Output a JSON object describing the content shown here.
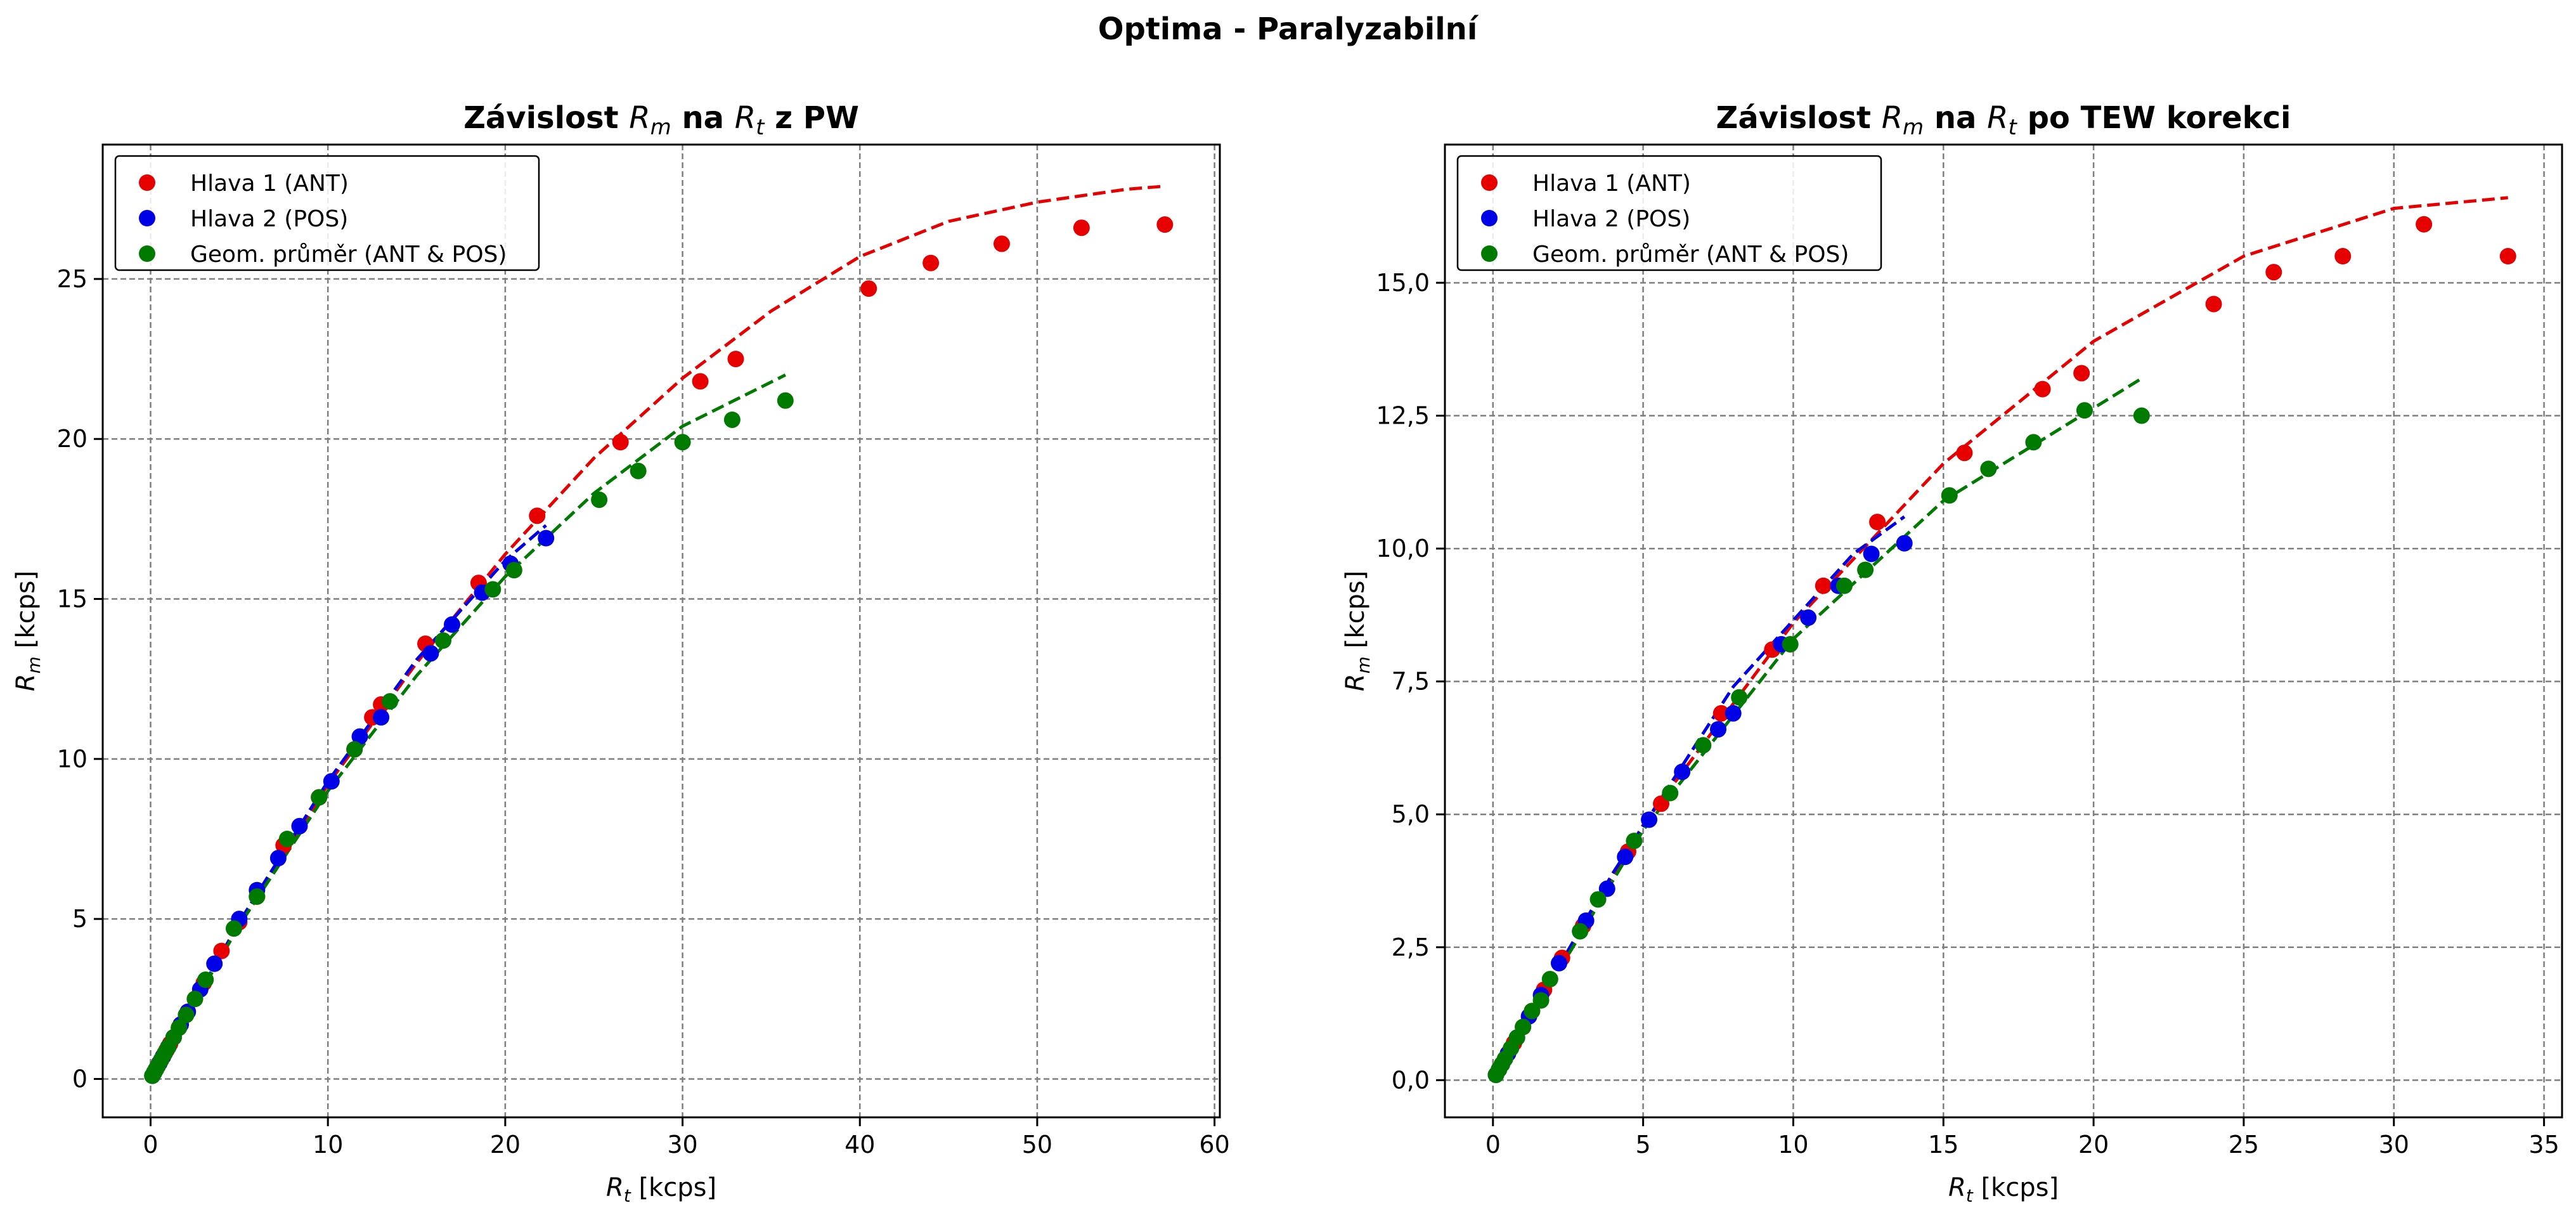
{
  "figure": {
    "suptitle": "Optima - Paralyzabilní"
  },
  "colors": {
    "head1": "#e60000",
    "head2": "#0000e6",
    "geom": "#007a00",
    "grid": "#7f7f7f"
  },
  "chart_data": [
    {
      "type": "scatter",
      "title": "Závislost R_m na R_t z PW",
      "title_parts": [
        "Závislost ",
        "R",
        "m",
        " na ",
        "R",
        "t",
        " z PW"
      ],
      "xlabel_parts": [
        "R",
        "t",
        " [kcps]"
      ],
      "ylabel_parts": [
        "R",
        "m",
        " [kcps]"
      ],
      "xlim": [
        -2.7,
        60.3
      ],
      "ylim": [
        -1.2,
        29.2
      ],
      "xticks": [
        0,
        10,
        20,
        30,
        40,
        50,
        60
      ],
      "yticks": [
        0,
        5,
        10,
        15,
        20,
        25
      ],
      "xtick_labels": [
        "0",
        "10",
        "20",
        "30",
        "40",
        "50",
        "60"
      ],
      "ytick_labels": [
        "0",
        "5",
        "10",
        "15",
        "20",
        "25"
      ],
      "grid": true,
      "legend_position": "top-left",
      "series": [
        {
          "name": "Hlava 1 (ANT)",
          "color_key": "head1",
          "points": [
            [
              0.1,
              0.1
            ],
            [
              0.2,
              0.2
            ],
            [
              0.3,
              0.3
            ],
            [
              0.4,
              0.4
            ],
            [
              0.5,
              0.5
            ],
            [
              0.7,
              0.7
            ],
            [
              0.9,
              0.9
            ],
            [
              1.1,
              1.1
            ],
            [
              1.3,
              1.3
            ],
            [
              1.6,
              1.6
            ],
            [
              2.0,
              2.0
            ],
            [
              2.5,
              2.5
            ],
            [
              3.0,
              3.0
            ],
            [
              4.0,
              4.0
            ],
            [
              5.0,
              4.9
            ],
            [
              6.0,
              5.7
            ],
            [
              7.5,
              7.3
            ],
            [
              9.5,
              8.8
            ],
            [
              11.5,
              10.3
            ],
            [
              12.5,
              11.3
            ],
            [
              13.0,
              11.7
            ],
            [
              15.5,
              13.6
            ],
            [
              18.5,
              15.5
            ],
            [
              21.8,
              17.6
            ],
            [
              26.5,
              19.9
            ],
            [
              31.0,
              21.8
            ],
            [
              33.0,
              22.5
            ],
            [
              40.5,
              24.7
            ],
            [
              44.0,
              25.5
            ],
            [
              48.0,
              26.1
            ],
            [
              52.5,
              26.6
            ],
            [
              57.2,
              26.7
            ]
          ]
        },
        {
          "name": "Hlava 2 (POS)",
          "color_key": "head2",
          "points": [
            [
              0.1,
              0.1
            ],
            [
              0.2,
              0.2
            ],
            [
              0.3,
              0.3
            ],
            [
              0.5,
              0.5
            ],
            [
              0.7,
              0.7
            ],
            [
              1.0,
              1.0
            ],
            [
              1.3,
              1.3
            ],
            [
              1.7,
              1.7
            ],
            [
              2.1,
              2.1
            ],
            [
              2.8,
              2.8
            ],
            [
              3.6,
              3.6
            ],
            [
              5.0,
              5.0
            ],
            [
              6.0,
              5.9
            ],
            [
              7.2,
              6.9
            ],
            [
              8.4,
              7.9
            ],
            [
              10.2,
              9.3
            ],
            [
              11.8,
              10.7
            ],
            [
              13.0,
              11.3
            ],
            [
              15.8,
              13.3
            ],
            [
              17.0,
              14.2
            ],
            [
              18.7,
              15.2
            ],
            [
              20.3,
              16.1
            ],
            [
              22.3,
              16.9
            ]
          ]
        },
        {
          "name": "Geom. průměr (ANT & POS)",
          "color_key": "geom",
          "points": [
            [
              0.1,
              0.1
            ],
            [
              0.2,
              0.2
            ],
            [
              0.3,
              0.3
            ],
            [
              0.4,
              0.4
            ],
            [
              0.6,
              0.6
            ],
            [
              0.8,
              0.8
            ],
            [
              1.0,
              1.0
            ],
            [
              1.3,
              1.3
            ],
            [
              1.6,
              1.6
            ],
            [
              2.0,
              2.0
            ],
            [
              2.5,
              2.5
            ],
            [
              3.1,
              3.1
            ],
            [
              4.7,
              4.7
            ],
            [
              6.0,
              5.7
            ],
            [
              7.7,
              7.5
            ],
            [
              9.5,
              8.8
            ],
            [
              11.5,
              10.3
            ],
            [
              13.5,
              11.8
            ],
            [
              16.5,
              13.7
            ],
            [
              19.3,
              15.3
            ],
            [
              20.5,
              15.9
            ],
            [
              25.3,
              18.1
            ],
            [
              27.5,
              19.0
            ],
            [
              30.0,
              19.9
            ],
            [
              32.8,
              20.6
            ],
            [
              35.8,
              21.2
            ]
          ]
        }
      ],
      "fits": [
        {
          "color_key": "head1",
          "x": [
            0,
            5,
            10,
            15,
            20,
            25,
            30,
            35,
            40,
            45,
            50,
            55,
            57.2
          ],
          "y": [
            0,
            4.8,
            9.2,
            13.0,
            16.4,
            19.4,
            21.9,
            24.0,
            25.7,
            26.8,
            27.4,
            27.8,
            27.9
          ]
        },
        {
          "color_key": "head2",
          "x": [
            0,
            5,
            10,
            15,
            20,
            22.3
          ],
          "y": [
            0,
            4.9,
            9.3,
            13.1,
            16.2,
            17.3
          ]
        },
        {
          "color_key": "geom",
          "x": [
            0,
            5,
            10,
            15,
            20,
            25,
            30,
            35.8
          ],
          "y": [
            0,
            4.8,
            9.0,
            12.6,
            15.7,
            18.3,
            20.4,
            22.0
          ]
        }
      ]
    },
    {
      "type": "scatter",
      "title": "Závislost R_m na R_t po TEW korekci",
      "title_parts": [
        "Závislost ",
        "R",
        "m",
        " na ",
        "R",
        "t",
        " po TEW korekci"
      ],
      "xlabel_parts": [
        "R",
        "t",
        " [kcps]"
      ],
      "ylabel_parts": [
        "R",
        "m",
        " [kcps]"
      ],
      "xlim": [
        -1.6,
        35.6
      ],
      "ylim": [
        -0.7,
        17.6
      ],
      "xticks": [
        0,
        5,
        10,
        15,
        20,
        25,
        30,
        35
      ],
      "yticks": [
        0,
        2.5,
        5,
        7.5,
        10,
        12.5,
        15
      ],
      "xtick_labels": [
        "0",
        "5",
        "10",
        "15",
        "20",
        "25",
        "30",
        "35"
      ],
      "ytick_labels": [
        "0,0",
        "2,5",
        "5,0",
        "7,5",
        "10,0",
        "12,5",
        "15,0"
      ],
      "grid": true,
      "legend_position": "top-left",
      "series": [
        {
          "name": "Hlava 1 (ANT)",
          "color_key": "head1",
          "points": [
            [
              0.1,
              0.1
            ],
            [
              0.2,
              0.2
            ],
            [
              0.3,
              0.3
            ],
            [
              0.5,
              0.5
            ],
            [
              0.7,
              0.7
            ],
            [
              1.0,
              1.0
            ],
            [
              1.3,
              1.3
            ],
            [
              1.7,
              1.7
            ],
            [
              2.3,
              2.3
            ],
            [
              3.0,
              2.9
            ],
            [
              4.5,
              4.3
            ],
            [
              5.6,
              5.2
            ],
            [
              7.6,
              6.9
            ],
            [
              9.3,
              8.1
            ],
            [
              11.0,
              9.3
            ],
            [
              12.8,
              10.5
            ],
            [
              15.7,
              11.8
            ],
            [
              18.3,
              13.0
            ],
            [
              19.6,
              13.3
            ],
            [
              24.0,
              14.6
            ],
            [
              26.0,
              15.2
            ],
            [
              28.3,
              15.5
            ],
            [
              31.0,
              16.1
            ],
            [
              33.8,
              15.5
            ]
          ]
        },
        {
          "name": "Hlava 2 (POS)",
          "color_key": "head2",
          "points": [
            [
              0.1,
              0.1
            ],
            [
              0.2,
              0.2
            ],
            [
              0.3,
              0.3
            ],
            [
              0.5,
              0.5
            ],
            [
              0.8,
              0.8
            ],
            [
              1.2,
              1.2
            ],
            [
              1.6,
              1.6
            ],
            [
              2.2,
              2.2
            ],
            [
              3.1,
              3.0
            ],
            [
              3.8,
              3.6
            ],
            [
              4.4,
              4.2
            ],
            [
              5.2,
              4.9
            ],
            [
              6.3,
              5.8
            ],
            [
              7.5,
              6.6
            ],
            [
              8.0,
              6.9
            ],
            [
              9.6,
              8.2
            ],
            [
              10.5,
              8.7
            ],
            [
              11.5,
              9.3
            ],
            [
              12.6,
              9.9
            ],
            [
              13.7,
              10.1
            ]
          ]
        },
        {
          "name": "Geom. průměr (ANT & POS)",
          "color_key": "geom",
          "points": [
            [
              0.1,
              0.1
            ],
            [
              0.2,
              0.2
            ],
            [
              0.3,
              0.3
            ],
            [
              0.4,
              0.4
            ],
            [
              0.6,
              0.6
            ],
            [
              0.8,
              0.8
            ],
            [
              1.0,
              1.0
            ],
            [
              1.3,
              1.3
            ],
            [
              1.6,
              1.5
            ],
            [
              1.9,
              1.9
            ],
            [
              2.9,
              2.8
            ],
            [
              3.5,
              3.4
            ],
            [
              4.7,
              4.5
            ],
            [
              5.9,
              5.4
            ],
            [
              7.0,
              6.3
            ],
            [
              8.2,
              7.2
            ],
            [
              9.9,
              8.2
            ],
            [
              11.7,
              9.3
            ],
            [
              12.4,
              9.6
            ],
            [
              15.2,
              11.0
            ],
            [
              16.5,
              11.5
            ],
            [
              18.0,
              12.0
            ],
            [
              19.7,
              12.6
            ],
            [
              21.6,
              12.5
            ]
          ]
        }
      ],
      "fits": [
        {
          "color_key": "head1",
          "x": [
            0,
            5,
            10,
            15,
            20,
            25,
            30,
            33.8
          ],
          "y": [
            0,
            4.8,
            8.6,
            11.6,
            13.9,
            15.5,
            16.4,
            16.6
          ]
        },
        {
          "color_key": "head2",
          "x": [
            0,
            4,
            8,
            12,
            13.7
          ],
          "y": [
            0,
            3.9,
            7.4,
            9.9,
            10.6
          ]
        },
        {
          "color_key": "geom",
          "x": [
            0,
            5,
            10,
            15,
            21.6
          ],
          "y": [
            0,
            4.7,
            8.3,
            10.9,
            13.2
          ]
        }
      ]
    }
  ]
}
